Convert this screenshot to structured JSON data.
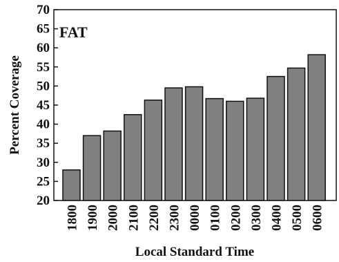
{
  "chart_data": {
    "type": "bar",
    "annotation": "FAT",
    "xlabel": "Local Standard Time",
    "ylabel": "Percent Coverage",
    "categories": [
      "1800",
      "1900",
      "2000",
      "2100",
      "2200",
      "2300",
      "0000",
      "0100",
      "0200",
      "0300",
      "0400",
      "0500",
      "0600"
    ],
    "values": [
      28,
      37,
      38.2,
      42.5,
      46.3,
      49.5,
      49.8,
      46.7,
      46,
      46.8,
      52.5,
      54.7,
      58.2
    ],
    "ylim": [
      20,
      70
    ],
    "yticks": [
      20,
      25,
      30,
      35,
      40,
      45,
      50,
      55,
      60,
      65,
      70
    ],
    "grid": false,
    "bar_color": "#808080"
  }
}
